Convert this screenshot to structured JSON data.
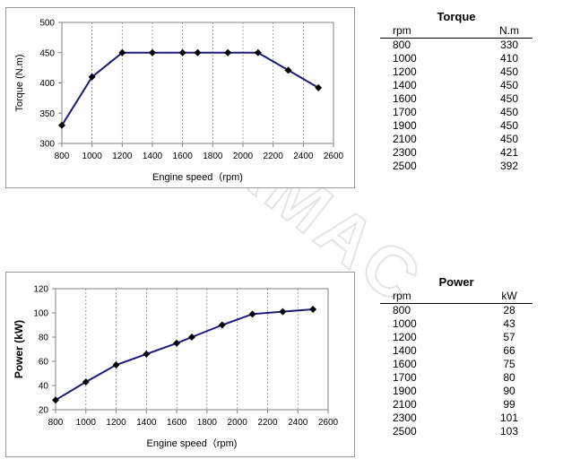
{
  "chart_data": [
    {
      "type": "line",
      "title": "",
      "xlabel": "Engine speed（rpm)",
      "ylabel": "Torque (N.m)",
      "x": [
        800,
        1000,
        1200,
        1400,
        1600,
        1700,
        1900,
        2100,
        2300,
        2500
      ],
      "series": [
        {
          "values": [
            330,
            410,
            450,
            450,
            450,
            450,
            450,
            450,
            421,
            392
          ]
        }
      ],
      "xlim": [
        800,
        2600
      ],
      "ylim": [
        300,
        500
      ],
      "xticks": [
        "800",
        "1000",
        "1200",
        "1400",
        "1600",
        "1800",
        "2000",
        "2200",
        "2400",
        "2600"
      ],
      "yticks": [
        "300",
        "350",
        "400",
        "450",
        "500"
      ],
      "grid": "vertical-dashed",
      "line_color": "#1a1a7a",
      "marker": "diamond"
    },
    {
      "type": "line",
      "title": "",
      "xlabel": "Engine speed（rpm)",
      "ylabel": "Power (kW)",
      "x": [
        800,
        1000,
        1200,
        1400,
        1600,
        1700,
        1900,
        2100,
        2300,
        2500
      ],
      "series": [
        {
          "values": [
            28,
            43,
            57,
            66,
            75,
            80,
            90,
            99,
            101,
            103
          ]
        }
      ],
      "xlim": [
        800,
        2600
      ],
      "ylim": [
        20,
        120
      ],
      "xticks": [
        "800",
        "1000",
        "1200",
        "1400",
        "1600",
        "1800",
        "2000",
        "2200",
        "2400",
        "2600"
      ],
      "yticks": [
        "20",
        "40",
        "60",
        "80",
        "100",
        "120"
      ],
      "grid": "vertical-dashed",
      "line_color": "#1a1a7a",
      "marker": "diamond"
    }
  ],
  "torque_table": {
    "title": "Torque",
    "col_rpm": "rpm",
    "col_value": "N.m",
    "rows": [
      [
        "800",
        "330"
      ],
      [
        "1000",
        "410"
      ],
      [
        "1200",
        "450"
      ],
      [
        "1400",
        "450"
      ],
      [
        "1600",
        "450"
      ],
      [
        "1700",
        "450"
      ],
      [
        "1900",
        "450"
      ],
      [
        "2100",
        "450"
      ],
      [
        "2300",
        "421"
      ],
      [
        "2500",
        "392"
      ]
    ]
  },
  "power_table": {
    "title": "Power",
    "col_rpm": "rpm",
    "col_value": "kW",
    "rows": [
      [
        "800",
        "28"
      ],
      [
        "1000",
        "43"
      ],
      [
        "1200",
        "57"
      ],
      [
        "1400",
        "66"
      ],
      [
        "1600",
        "75"
      ],
      [
        "1700",
        "80"
      ],
      [
        "1900",
        "90"
      ],
      [
        "2100",
        "99"
      ],
      [
        "2300",
        "101"
      ],
      [
        "2500",
        "103"
      ]
    ]
  },
  "watermark": {
    "text": "DURAMAC"
  }
}
